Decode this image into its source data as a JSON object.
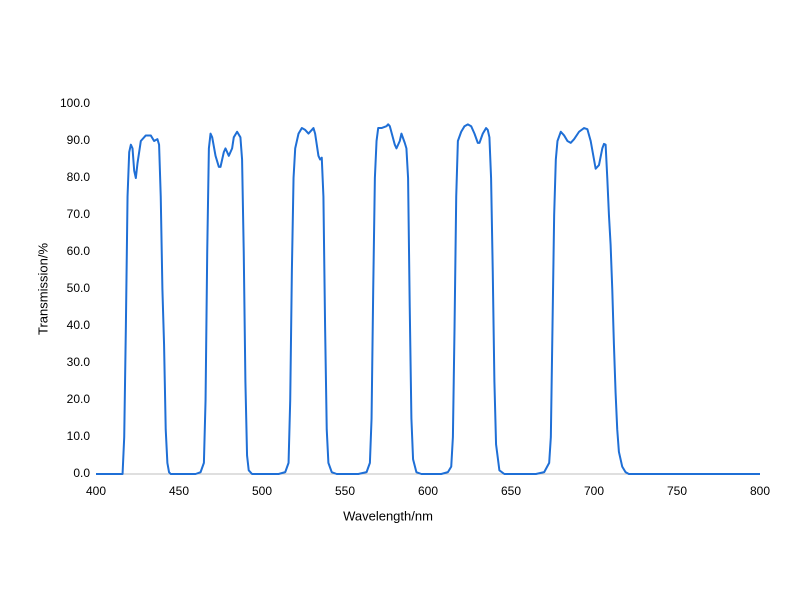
{
  "chart_data": {
    "type": "line",
    "x_label": "Wavelength/nm",
    "y_label": "Transmission/%",
    "x": [
      400,
      416,
      417,
      418,
      419,
      420,
      421,
      422,
      423,
      424,
      425,
      427,
      430,
      433,
      435,
      437,
      438,
      439,
      440,
      441,
      442,
      443,
      444,
      445,
      460,
      463,
      465,
      466,
      467,
      468,
      469,
      470,
      472,
      474,
      475,
      477,
      478,
      480,
      482,
      483,
      485,
      487,
      488,
      489,
      490,
      491,
      492,
      494,
      510,
      514,
      516,
      517,
      518,
      519,
      520,
      522,
      524,
      526,
      528,
      531,
      532,
      534,
      535,
      536,
      537,
      538,
      539,
      540,
      542,
      545,
      558,
      563,
      565,
      566,
      567,
      568,
      569,
      570,
      572,
      575,
      576,
      577,
      580,
      581,
      583,
      584,
      586,
      587,
      588,
      589,
      590,
      591,
      593,
      596,
      608,
      612,
      614,
      615,
      616,
      617,
      618,
      620,
      622,
      624,
      626,
      628,
      630,
      631,
      633,
      635,
      636,
      637,
      638,
      639,
      640,
      641,
      643,
      646,
      665,
      670,
      673,
      674,
      675,
      676,
      677,
      678,
      680,
      682,
      684,
      686,
      688,
      691,
      694,
      696,
      698,
      700,
      701,
      703,
      705,
      706,
      707,
      708,
      709,
      710,
      711,
      712,
      713,
      714,
      715,
      717,
      719,
      721,
      800
    ],
    "series": [
      {
        "color": "#1f6fd6",
        "values": [
          0,
          0,
          10,
          40,
          75,
          87,
          89,
          88,
          82,
          80,
          84,
          90,
          91.5,
          91.5,
          90,
          90.5,
          89,
          75,
          50,
          35,
          12,
          3,
          0.5,
          0,
          0,
          0.5,
          3,
          20,
          60,
          88,
          92,
          91,
          86,
          83,
          83,
          87,
          88,
          86,
          88,
          91,
          92.5,
          91,
          85,
          60,
          25,
          5,
          1,
          0,
          0,
          0.5,
          3,
          20,
          55,
          80,
          88,
          92,
          93.5,
          93,
          92,
          93.5,
          92,
          86,
          85,
          85.5,
          75,
          40,
          12,
          3,
          0.5,
          0,
          0,
          0.5,
          3,
          15,
          50,
          80,
          90,
          93.5,
          93.5,
          94,
          94.5,
          94,
          89,
          88,
          90,
          92,
          89.5,
          88,
          80,
          45,
          15,
          4,
          0.5,
          0,
          0,
          0.5,
          2,
          10,
          40,
          75,
          90,
          92.5,
          94,
          94.5,
          94,
          92,
          89.5,
          89.5,
          92,
          93.5,
          93,
          91,
          80,
          55,
          25,
          8,
          1,
          0,
          0,
          0.5,
          3,
          10,
          40,
          70,
          85,
          90,
          92.5,
          91.5,
          90,
          89.5,
          90.5,
          92.5,
          93.5,
          93.2,
          90,
          85,
          82.5,
          83.5,
          88,
          89.2,
          89,
          80,
          70,
          62,
          50,
          35,
          22,
          12,
          6,
          2,
          0.5,
          0,
          0
        ]
      }
    ],
    "xlim": [
      400,
      800
    ],
    "xticks": [
      400,
      450,
      500,
      550,
      600,
      650,
      700,
      750,
      800
    ],
    "ylim": [
      0,
      100
    ],
    "yticks": [
      {
        "value": 0,
        "label": "0.0"
      },
      {
        "value": 10,
        "label": "10.0"
      },
      {
        "value": 20,
        "label": "20.0"
      },
      {
        "value": 30,
        "label": "30.0"
      },
      {
        "value": 40,
        "label": "40.0"
      },
      {
        "value": 50,
        "label": "50.0"
      },
      {
        "value": 60,
        "label": "60.0"
      },
      {
        "value": 70,
        "label": "70.0"
      },
      {
        "value": 80,
        "label": "80.0"
      },
      {
        "value": 90,
        "label": "90.0"
      },
      {
        "value": 100,
        "label": "100.0"
      }
    ]
  }
}
